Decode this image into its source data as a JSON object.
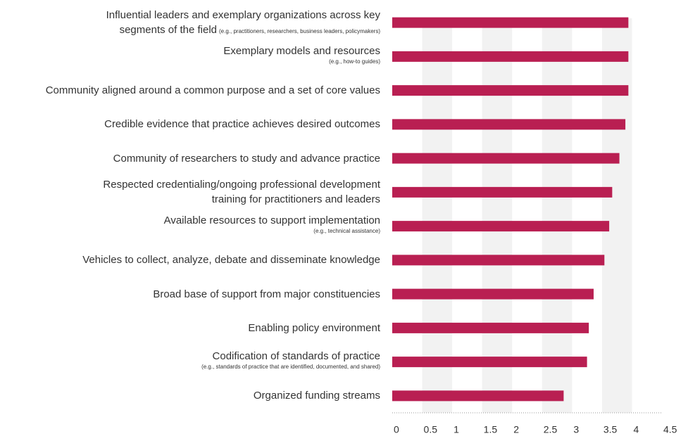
{
  "chart_data": {
    "type": "barh",
    "categories": [
      "Influential leaders and exemplary organizations across key\nsegments of the field",
      "Exemplary models and resources",
      "Community aligned around a common purpose and a set of core values",
      "Credible evidence that practice achieves desired outcomes",
      "Community of researchers to study and advance practice",
      "Respected credentialing/ongoing professional development\ntraining for practitioners and leaders",
      "Available resources to support implementation",
      "Vehicles to collect, analyze, debate and disseminate knowledge",
      "Broad base of support from major constituencies",
      "Enabling policy environment",
      "Codification of standards of practice",
      "Organized funding streams"
    ],
    "category_notes": [
      "(e.g., practitioners, researchers, business leaders, policymakers)",
      "(e.g., how-to guides)",
      null,
      null,
      null,
      null,
      "(e.g., technical assistance)",
      null,
      null,
      null,
      "(e.g., standards of practice that are identified, documented, and shared)",
      null
    ],
    "values": [
      3.94,
      3.94,
      3.94,
      3.89,
      3.79,
      3.67,
      3.62,
      3.54,
      3.36,
      3.28,
      3.25,
      2.86
    ],
    "color": "#b91f52",
    "xlim": [
      0,
      4.5
    ],
    "xticks": [
      0,
      0.5,
      1,
      1.5,
      2,
      2.5,
      3,
      3.5,
      4,
      4.5
    ],
    "grid": "bands"
  }
}
